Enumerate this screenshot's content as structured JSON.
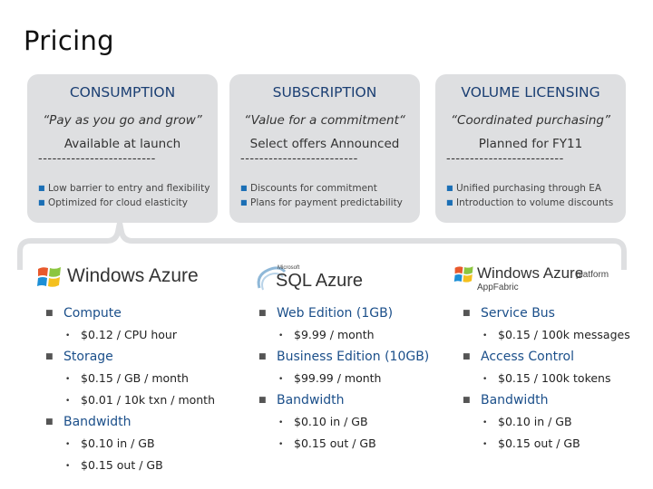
{
  "title": "Pricing",
  "cards": [
    {
      "heading": "CONSUMPTION",
      "quote": "“Pay as you go and grow”",
      "status": "Available at launch",
      "divider": "-------------------------",
      "bullets": [
        "Low barrier to entry and flexibility",
        "Optimized for cloud elasticity"
      ]
    },
    {
      "heading": "SUBSCRIPTION",
      "quote": "“Value for a commitment“",
      "status": "Select offers Announced",
      "divider": "-------------------------",
      "bullets": [
        "Discounts for commitment",
        "Plans for payment predictability"
      ]
    },
    {
      "heading": "VOLUME LICENSING",
      "quote": "“Coordinated purchasing”",
      "status": "Planned for FY11",
      "divider": "-------------------------",
      "bullets": [
        "Unified purchasing through EA",
        "Introduction to volume discounts"
      ]
    }
  ],
  "logos": {
    "azure": {
      "icon": "windows-flag-icon",
      "text": "Windows Azure"
    },
    "sql": {
      "prefix": "Microsoft",
      "text": "SQL Azure"
    },
    "appfabric": {
      "icon": "windows-flag-icon",
      "text": "Windows Azure",
      "suffix": "platform",
      "sub": "AppFabric"
    }
  },
  "columns": [
    {
      "groups": [
        {
          "name": "Compute",
          "items": [
            "$0.12 / CPU hour"
          ]
        },
        {
          "name": "Storage",
          "items": [
            "$0.15 / GB / month",
            "$0.01 / 10k txn / month"
          ]
        },
        {
          "name": "Bandwidth",
          "items": [
            "$0.10 in / GB",
            "$0.15 out / GB"
          ]
        }
      ]
    },
    {
      "groups": [
        {
          "name": "Web Edition (1GB)",
          "items": [
            "$9.99 / month"
          ]
        },
        {
          "name": "Business Edition (10GB)",
          "items": [
            "$99.99 / month"
          ]
        },
        {
          "name": "Bandwidth",
          "items": [
            "$0.10 in / GB",
            "$0.15 out / GB"
          ]
        }
      ]
    },
    {
      "groups": [
        {
          "name": "Service Bus",
          "items": [
            "$0.15 / 100k messages"
          ]
        },
        {
          "name": "Access Control",
          "items": [
            "$0.15 / 100k tokens"
          ]
        },
        {
          "name": "Bandwidth",
          "items": [
            "$0.10 in / GB",
            "$0.15 out / GB"
          ]
        }
      ]
    }
  ],
  "colors": {
    "card_bg": "#dedfe1",
    "heading": "#1b3f73",
    "link_blue": "#1b4f8a",
    "accent": "#1b6fb5"
  }
}
